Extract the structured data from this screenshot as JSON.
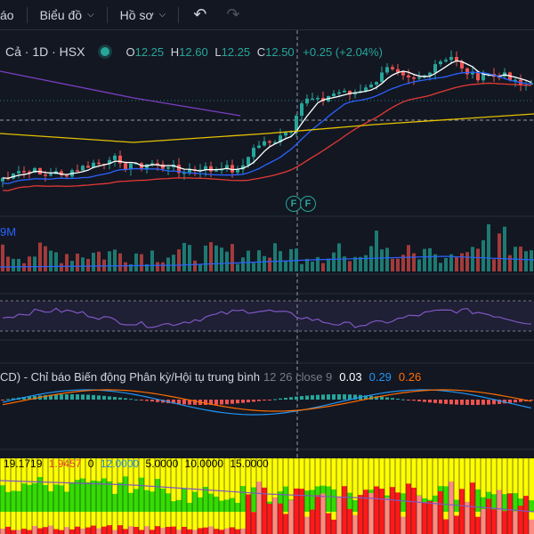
{
  "toolbar": {
    "first_item": "áo",
    "chart_menu": "Biểu đồ",
    "profile_menu": "Hồ sơ"
  },
  "legend": {
    "symbol": "Cả · 1D · HSX",
    "open_key": "O",
    "open": "12.25",
    "high_key": "H",
    "high": "12.60",
    "low_key": "L",
    "low": "12.25",
    "close_key": "C",
    "close": "12.50",
    "change": "+0.25 (+2.04%)"
  },
  "volume": {
    "label": "9M"
  },
  "macd": {
    "title": "CD) - Chỉ báo Biến động Phân kỳ/Hội tụ trung bình",
    "params": "12 26 close 9",
    "value1": "0.03",
    "value2": "0.29",
    "value3": "0.26"
  },
  "bottom_indicator": {
    "values": [
      "19.1719",
      "1.9457",
      "0",
      "12.0000",
      "5.0000",
      "10.0000",
      "15.0000"
    ]
  },
  "badges": [
    "F",
    "F"
  ],
  "colors": {
    "up": "#26a69a",
    "down": "#ef5350",
    "background": "#131722"
  }
}
